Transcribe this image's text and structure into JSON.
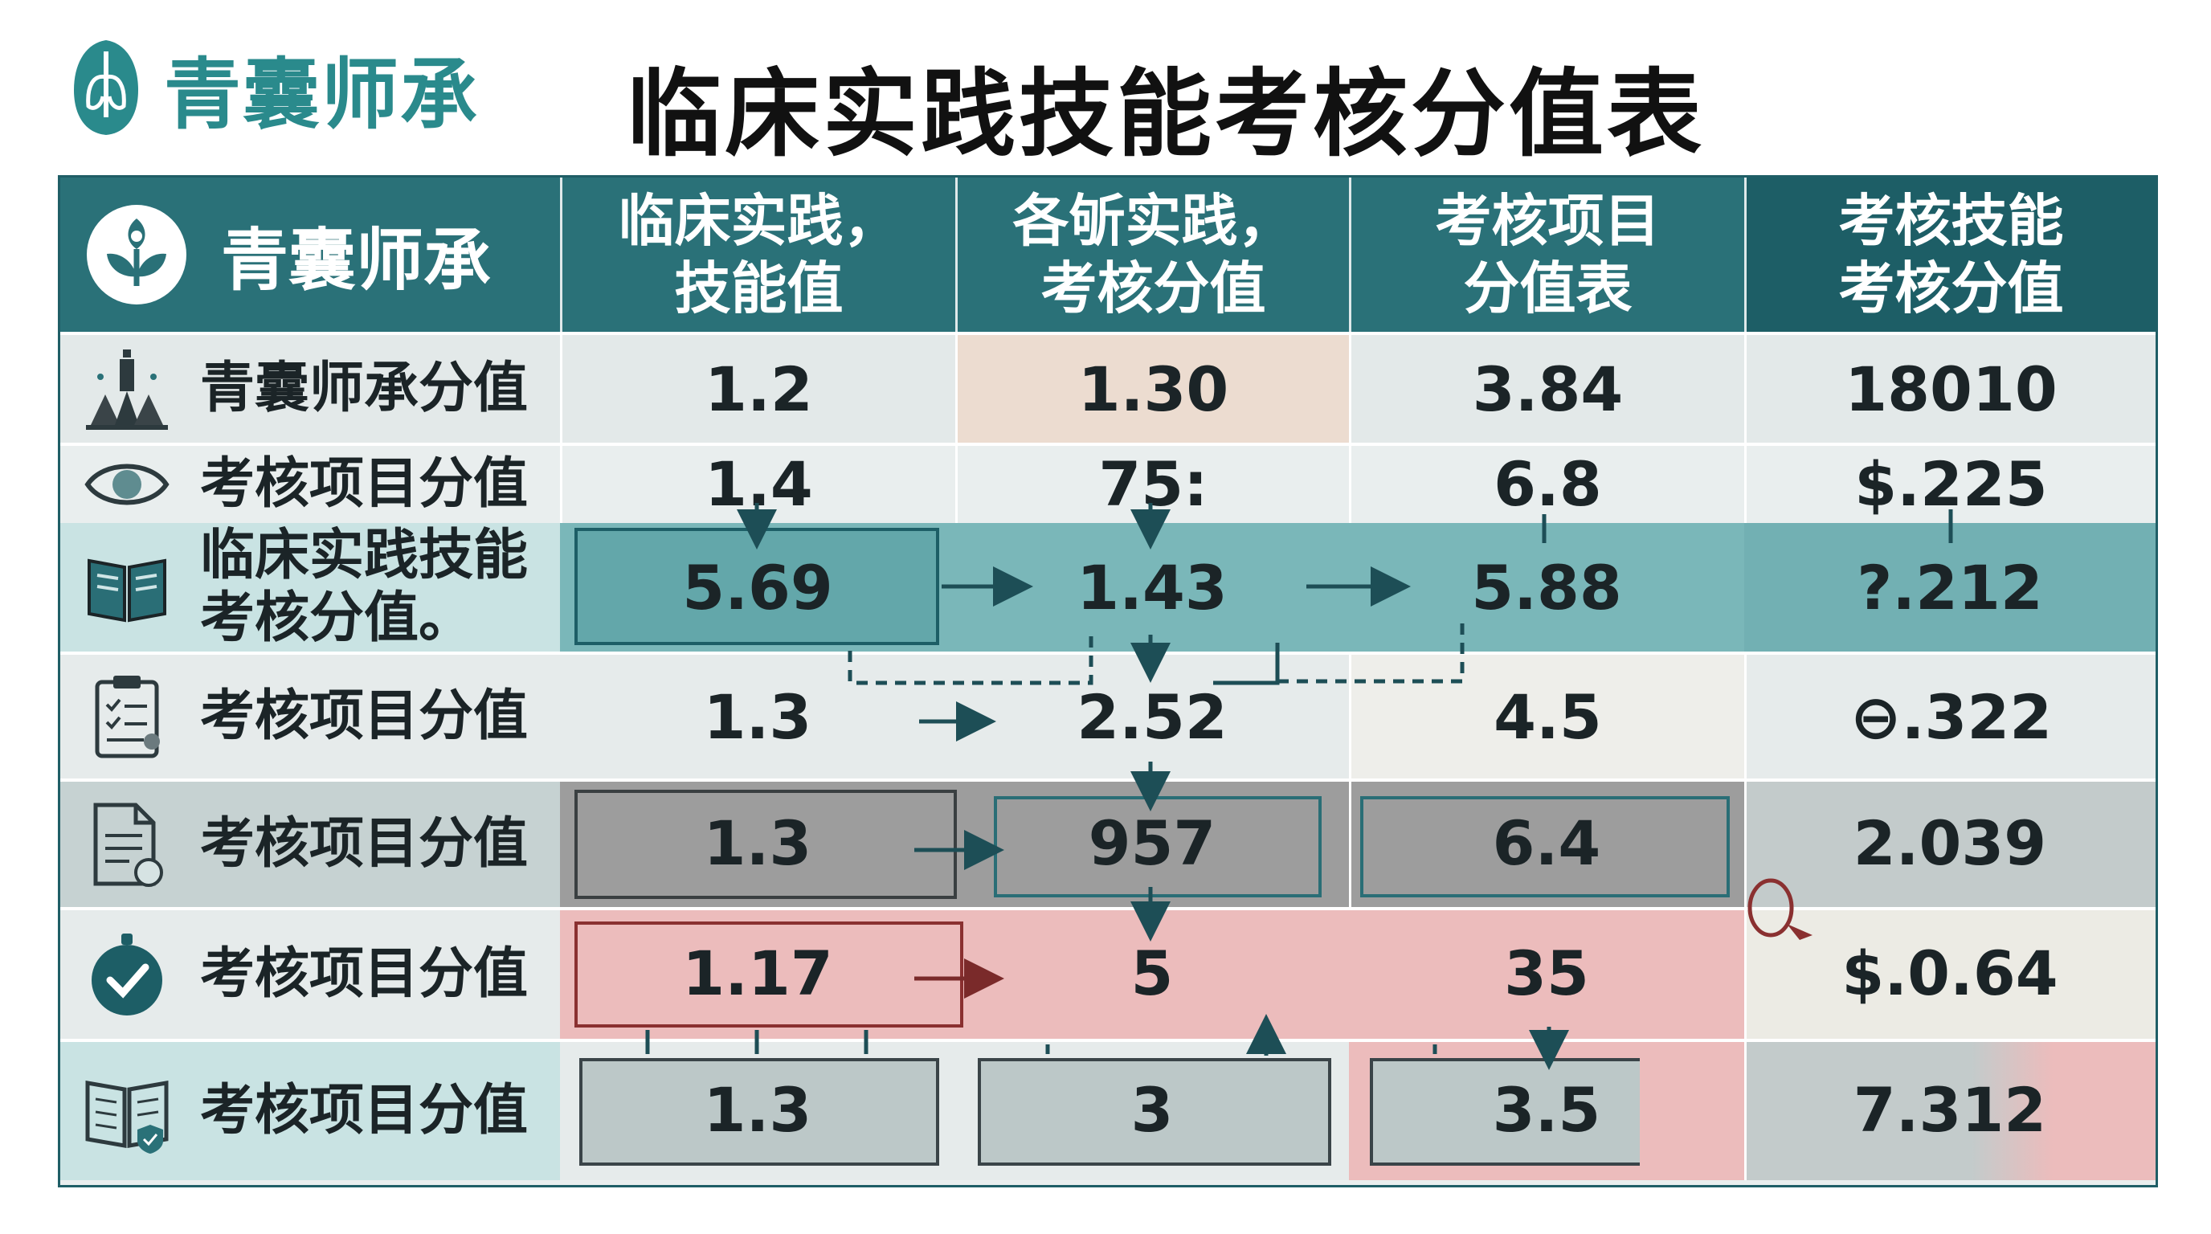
{
  "brand": {
    "name": "青囊师承",
    "logo_icon": "lung-logo-icon"
  },
  "title": "临床实践技能考核分值表",
  "table": {
    "header": {
      "brand_name": "青囊师承",
      "columns": [
        {
          "line1": "临床实践，",
          "line2": "技能值"
        },
        {
          "line1": "各斪实践，",
          "line2": "考核分值"
        },
        {
          "line1": "考核项目",
          "line2": "分值表"
        },
        {
          "line1": "考核技能",
          "line2": "考核分值"
        }
      ]
    },
    "rows": [
      {
        "label": "青囊师承分值",
        "icon": "figure-building-icon",
        "values": [
          "1.2",
          "1.30",
          "3.84",
          "18010"
        ]
      },
      {
        "label": "考核项目分值",
        "icon": "eye-icon",
        "values": [
          "1.4",
          "75:",
          "6.8",
          "$.225"
        ]
      },
      {
        "label": "临床实践技能",
        "label2": "考核分值。",
        "icon": "open-book-icon",
        "values": [
          "5.69",
          "1.43",
          "5.88",
          "?.212"
        ]
      },
      {
        "label": "考核项目分值",
        "icon": "clipboard-icon",
        "values": [
          "1.3",
          "2.52",
          "4.5",
          "⊖.322"
        ]
      },
      {
        "label": "考核项目分值",
        "icon": "document-icon",
        "values": [
          "1.3",
          "957",
          "6.4",
          "2.039"
        ]
      },
      {
        "label": "考核项目分值",
        "icon": "check-badge-icon",
        "values": [
          "1.17",
          "5",
          "35",
          "$.0.64"
        ]
      },
      {
        "label": "考核项目分值",
        "icon": "book-shield-icon",
        "values": [
          "1.3",
          "3",
          "3.5",
          "7.312"
        ]
      }
    ]
  },
  "colors": {
    "teal_dark": "#2a7178",
    "teal_darker": "#1d5e66",
    "teal_mid": "#7ab7b9",
    "peach": "#ecdcd0",
    "gray_cell": "#9d9d9d",
    "pink_cell": "#ecbcbc",
    "row_light": "#e6ebeb",
    "label_aqua": "#c9e3e3"
  }
}
